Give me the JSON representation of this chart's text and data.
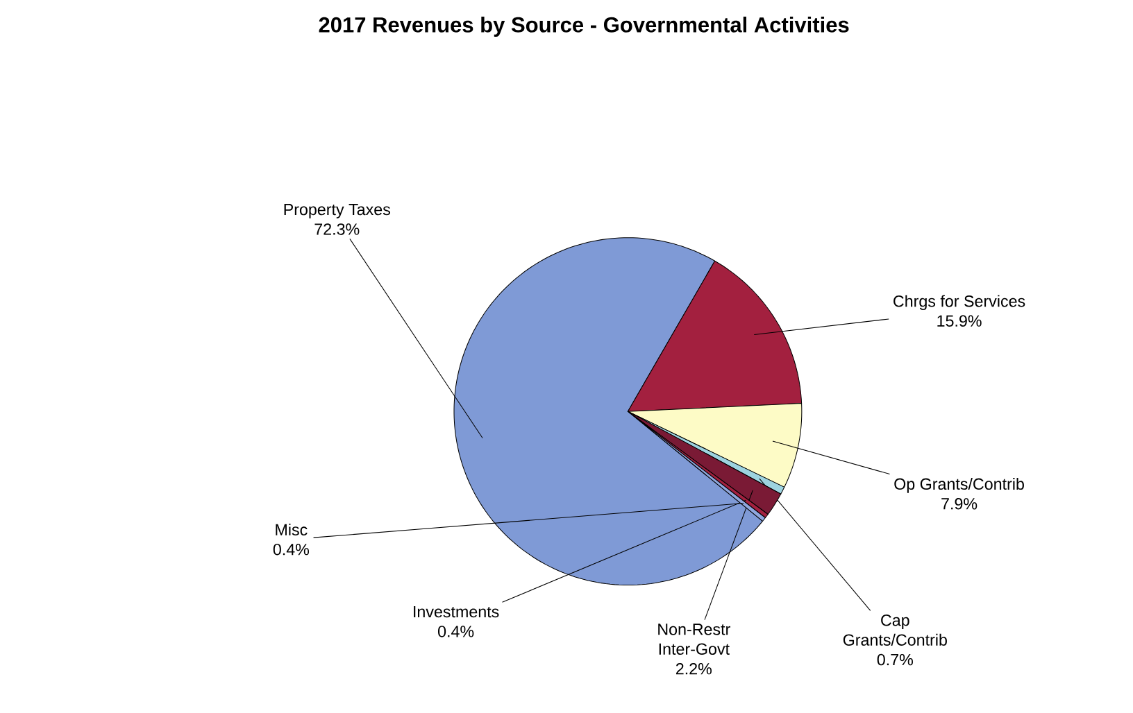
{
  "chart_data": {
    "type": "pie",
    "title": "2017 Revenues by Source - Governmental Activities",
    "categories": [
      "Property Taxes",
      "Chrgs for Services",
      "Op Grants/Contrib",
      "Cap Grants/Contrib",
      "Non-Restr Inter-Govt",
      "Investments",
      "Misc"
    ],
    "values": [
      72.3,
      15.9,
      7.9,
      0.7,
      2.2,
      0.4,
      0.4
    ],
    "value_labels": [
      "72.3%",
      "15.9%",
      "7.9%",
      "0.7%",
      "2.2%",
      "0.4%",
      "0.4%"
    ],
    "colors": [
      "#7f9ad6",
      "#a3203f",
      "#fdfbc6",
      "#9dd3e0",
      "#7a1a35",
      "#a3203f",
      "#8fa6dc"
    ],
    "legend": false
  }
}
